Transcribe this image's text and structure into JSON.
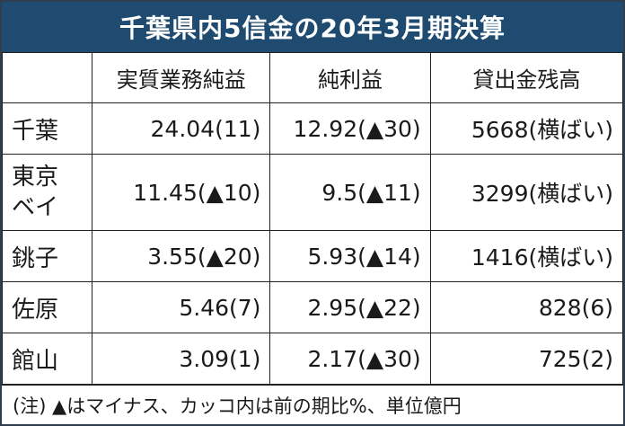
{
  "title": "千葉県内5信金の20年3月期決算",
  "columns": [
    "",
    "実質業務純益",
    "純利益",
    "貸出金残高"
  ],
  "rows": [
    {
      "name_line1": "千葉",
      "name_line2": "",
      "core_profit": "24.04(11)",
      "net_profit": "12.92(▲30)",
      "loans": "5668(横ばい)"
    },
    {
      "name_line1": "東京",
      "name_line2": "ベイ",
      "core_profit": "11.45(▲10)",
      "net_profit": "9.5(▲11)",
      "loans": "3299(横ばい)"
    },
    {
      "name_line1": "銚子",
      "name_line2": "",
      "core_profit": "3.55(▲20)",
      "net_profit": "5.93(▲14)",
      "loans": "1416(横ばい)"
    },
    {
      "name_line1": "佐原",
      "name_line2": "",
      "core_profit": "5.46(7)",
      "net_profit": "2.95(▲22)",
      "loans": "828(6)"
    },
    {
      "name_line1": "館山",
      "name_line2": "",
      "core_profit": "3.09(1)",
      "net_profit": "2.17(▲30)",
      "loans": "725(2)"
    }
  ],
  "note": "(注) ▲はマイナス、カッコ内は前の期比%、単位億円"
}
